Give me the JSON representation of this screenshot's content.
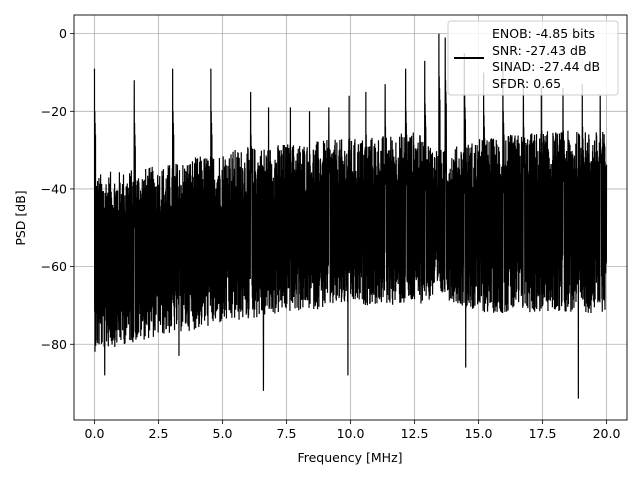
{
  "chart_data": {
    "type": "line",
    "title": "",
    "xlabel": "Frequency [MHz]",
    "ylabel": "PSD [dB]",
    "xlim": [
      -0.8,
      20.8
    ],
    "ylim": [
      -99.5,
      4.8
    ],
    "x_ticks": [
      0.0,
      2.5,
      5.0,
      7.5,
      10.0,
      12.5,
      15.0,
      17.5,
      20.0
    ],
    "x_tick_labels": [
      "0.0",
      "2.5",
      "5.0",
      "7.5",
      "10.0",
      "12.5",
      "15.0",
      "17.5",
      "20.0"
    ],
    "y_ticks": [
      0,
      -20,
      -40,
      -60,
      -80
    ],
    "y_tick_labels": [
      "0",
      "−20",
      "−40",
      "−60",
      "−80"
    ],
    "grid": true,
    "legend_position": "top-right",
    "series": [
      {
        "color": "#000000",
        "noise_floor_profile": {
          "x": [
            0.0,
            2.5,
            5.0,
            7.5,
            10.0,
            12.5,
            13.6,
            15.0,
            17.5,
            20.0
          ],
          "upper_db": [
            -36,
            -34,
            -30,
            -28,
            -27,
            -25,
            -30,
            -27,
            -25,
            -25
          ],
          "lower_db": [
            -82,
            -78,
            -75,
            -72,
            -70,
            -70,
            -68,
            -72,
            -72,
            -72
          ]
        },
        "spurs": [
          {
            "x": 0.0,
            "y": -9
          },
          {
            "x": 1.55,
            "y": -12
          },
          {
            "x": 3.05,
            "y": -9
          },
          {
            "x": 4.55,
            "y": -9
          },
          {
            "x": 6.1,
            "y": -15
          },
          {
            "x": 6.8,
            "y": -19
          },
          {
            "x": 7.65,
            "y": -19
          },
          {
            "x": 8.4,
            "y": -20
          },
          {
            "x": 9.15,
            "y": -19
          },
          {
            "x": 9.95,
            "y": -16
          },
          {
            "x": 10.6,
            "y": -15
          },
          {
            "x": 11.35,
            "y": -13
          },
          {
            "x": 12.15,
            "y": -9
          },
          {
            "x": 12.9,
            "y": -7
          },
          {
            "x": 13.45,
            "y": 0
          },
          {
            "x": 13.7,
            "y": -1
          },
          {
            "x": 14.45,
            "y": -5
          },
          {
            "x": 15.2,
            "y": -10
          },
          {
            "x": 15.95,
            "y": -9
          },
          {
            "x": 16.75,
            "y": -13
          },
          {
            "x": 17.45,
            "y": -14
          },
          {
            "x": 18.3,
            "y": -14
          },
          {
            "x": 19.05,
            "y": -13
          },
          {
            "x": 19.75,
            "y": -16
          }
        ],
        "dips": [
          {
            "x": 0.4,
            "y": -88
          },
          {
            "x": 3.3,
            "y": -83
          },
          {
            "x": 6.6,
            "y": -92
          },
          {
            "x": 9.9,
            "y": -88
          },
          {
            "x": 14.5,
            "y": -86
          },
          {
            "x": 18.9,
            "y": -94
          }
        ]
      }
    ]
  },
  "legend": {
    "lines": [
      "ENOB: -4.85 bits",
      "SNR: -27.43 dB",
      "SINAD: -27.44 dB",
      "SFDR: 0.65"
    ]
  }
}
